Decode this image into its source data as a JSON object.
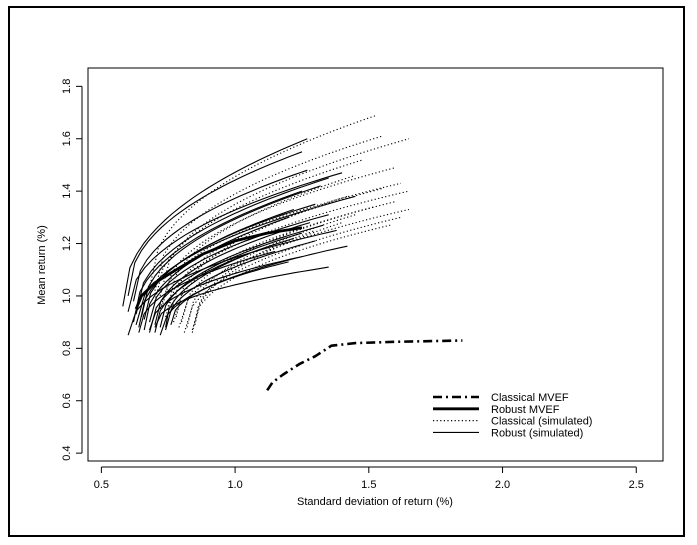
{
  "chart_data": {
    "type": "line",
    "xlabel": "Standard deviation of return (%)",
    "ylabel": "Mean return (%)",
    "xlim": [
      0.45,
      2.6
    ],
    "ylim": [
      0.37,
      1.87
    ],
    "xticks": [
      0.5,
      1.0,
      1.5,
      2.0,
      2.5
    ],
    "xtick_labels": [
      "0.5",
      "1.0",
      "1.5",
      "2.0",
      "2.5"
    ],
    "yticks": [
      0.4,
      0.6,
      0.8,
      1.0,
      1.2,
      1.4,
      1.6,
      1.8
    ],
    "ytick_labels": [
      "0.4",
      "0.6",
      "0.8",
      "1.0",
      "1.2",
      "1.4",
      "1.6",
      "1.8"
    ],
    "grid": false,
    "legend_position": "bottom-right",
    "legend": [
      {
        "label": "Classical MVEF",
        "style": "dashdot",
        "width": 2.6
      },
      {
        "label": "Robust MVEF",
        "style": "solid",
        "width": 2.8
      },
      {
        "label": "Classical (simulated)",
        "style": "dotted",
        "width": 1.2
      },
      {
        "label": "Robust (simulated)",
        "style": "solid",
        "width": 1.1
      }
    ],
    "series": [
      {
        "name": "Classical MVEF",
        "style": "dashdot",
        "width": 2.6,
        "points": [
          [
            1.12,
            0.64
          ],
          [
            1.14,
            0.67
          ],
          [
            1.18,
            0.7
          ],
          [
            1.24,
            0.74
          ],
          [
            1.3,
            0.77
          ],
          [
            1.36,
            0.81
          ],
          [
            1.45,
            0.82
          ],
          [
            1.6,
            0.825
          ],
          [
            1.85,
            0.83
          ]
        ]
      },
      {
        "name": "Robust MVEF",
        "style": "solid",
        "width": 2.8,
        "points": [
          [
            0.63,
            0.95
          ],
          [
            0.65,
            1.0
          ],
          [
            0.7,
            1.05
          ],
          [
            0.78,
            1.1
          ],
          [
            0.88,
            1.16
          ],
          [
            1.0,
            1.21
          ],
          [
            1.12,
            1.24
          ],
          [
            1.25,
            1.26
          ]
        ]
      }
    ],
    "simulated_classical": [
      {
        "x0": 0.68,
        "y0": 1.03,
        "x1": 1.53,
        "y1": 1.69
      },
      {
        "x0": 0.7,
        "y0": 1.02,
        "x1": 1.55,
        "y1": 1.61
      },
      {
        "x0": 0.72,
        "y0": 1.0,
        "x1": 1.65,
        "y1": 1.6
      },
      {
        "x0": 0.7,
        "y0": 0.98,
        "x1": 1.48,
        "y1": 1.52
      },
      {
        "x0": 0.73,
        "y0": 0.97,
        "x1": 1.6,
        "y1": 1.49
      },
      {
        "x0": 0.75,
        "y0": 0.96,
        "x1": 1.45,
        "y1": 1.46
      },
      {
        "x0": 0.72,
        "y0": 0.95,
        "x1": 1.62,
        "y1": 1.43
      },
      {
        "x0": 0.76,
        "y0": 0.94,
        "x1": 1.55,
        "y1": 1.41
      },
      {
        "x0": 0.74,
        "y0": 0.92,
        "x1": 1.65,
        "y1": 1.4
      },
      {
        "x0": 0.78,
        "y0": 0.92,
        "x1": 1.42,
        "y1": 1.38
      },
      {
        "x0": 0.77,
        "y0": 0.9,
        "x1": 1.6,
        "y1": 1.36
      },
      {
        "x0": 0.8,
        "y0": 0.9,
        "x1": 1.52,
        "y1": 1.34
      },
      {
        "x0": 0.79,
        "y0": 0.88,
        "x1": 1.65,
        "y1": 1.33
      },
      {
        "x0": 0.82,
        "y0": 0.88,
        "x1": 1.45,
        "y1": 1.31
      },
      {
        "x0": 0.81,
        "y0": 0.86,
        "x1": 1.62,
        "y1": 1.3
      },
      {
        "x0": 0.84,
        "y0": 0.86,
        "x1": 1.4,
        "y1": 1.28
      },
      {
        "x0": 0.84,
        "y0": 0.87,
        "x1": 1.58,
        "y1": 1.27
      },
      {
        "x0": 0.85,
        "y0": 0.89,
        "x1": 1.3,
        "y1": 1.25
      }
    ],
    "simulated_robust": [
      {
        "x0": 0.58,
        "y0": 0.96,
        "x1": 1.27,
        "y1": 1.6
      },
      {
        "x0": 0.6,
        "y0": 1.0,
        "x1": 1.25,
        "y1": 1.55
      },
      {
        "x0": 0.62,
        "y0": 0.98,
        "x1": 1.27,
        "y1": 1.48
      },
      {
        "x0": 0.6,
        "y0": 0.94,
        "x1": 1.4,
        "y1": 1.47
      },
      {
        "x0": 0.63,
        "y0": 0.93,
        "x1": 1.35,
        "y1": 1.45
      },
      {
        "x0": 0.65,
        "y0": 0.92,
        "x1": 1.32,
        "y1": 1.42
      },
      {
        "x0": 0.62,
        "y0": 0.9,
        "x1": 1.25,
        "y1": 1.4
      },
      {
        "x0": 0.63,
        "y0": 0.89,
        "x1": 1.45,
        "y1": 1.38
      },
      {
        "x0": 0.66,
        "y0": 0.91,
        "x1": 1.3,
        "y1": 1.35
      },
      {
        "x0": 0.64,
        "y0": 0.88,
        "x1": 1.22,
        "y1": 1.33
      },
      {
        "x0": 0.68,
        "y0": 0.9,
        "x1": 1.35,
        "y1": 1.31
      },
      {
        "x0": 0.66,
        "y0": 0.87,
        "x1": 1.2,
        "y1": 1.3
      },
      {
        "x0": 0.7,
        "y0": 0.89,
        "x1": 1.28,
        "y1": 1.28
      },
      {
        "x0": 0.68,
        "y0": 0.86,
        "x1": 1.33,
        "y1": 1.27
      },
      {
        "x0": 0.6,
        "y0": 0.85,
        "x1": 1.38,
        "y1": 1.25
      },
      {
        "x0": 0.72,
        "y0": 0.88,
        "x1": 1.25,
        "y1": 1.24
      },
      {
        "x0": 0.7,
        "y0": 0.86,
        "x1": 1.22,
        "y1": 1.22
      },
      {
        "x0": 0.74,
        "y0": 0.87,
        "x1": 1.3,
        "y1": 1.21
      },
      {
        "x0": 0.72,
        "y0": 0.85,
        "x1": 1.42,
        "y1": 1.19
      },
      {
        "x0": 0.64,
        "y0": 0.86,
        "x1": 1.15,
        "y1": 1.17
      },
      {
        "x0": 0.74,
        "y0": 0.88,
        "x1": 1.05,
        "y1": 1.16
      },
      {
        "x0": 0.68,
        "y0": 0.87,
        "x1": 1.25,
        "y1": 1.15
      },
      {
        "x0": 0.76,
        "y0": 0.89,
        "x1": 1.2,
        "y1": 1.13
      },
      {
        "x0": 0.7,
        "y0": 0.88,
        "x1": 1.35,
        "y1": 1.11
      }
    ]
  }
}
